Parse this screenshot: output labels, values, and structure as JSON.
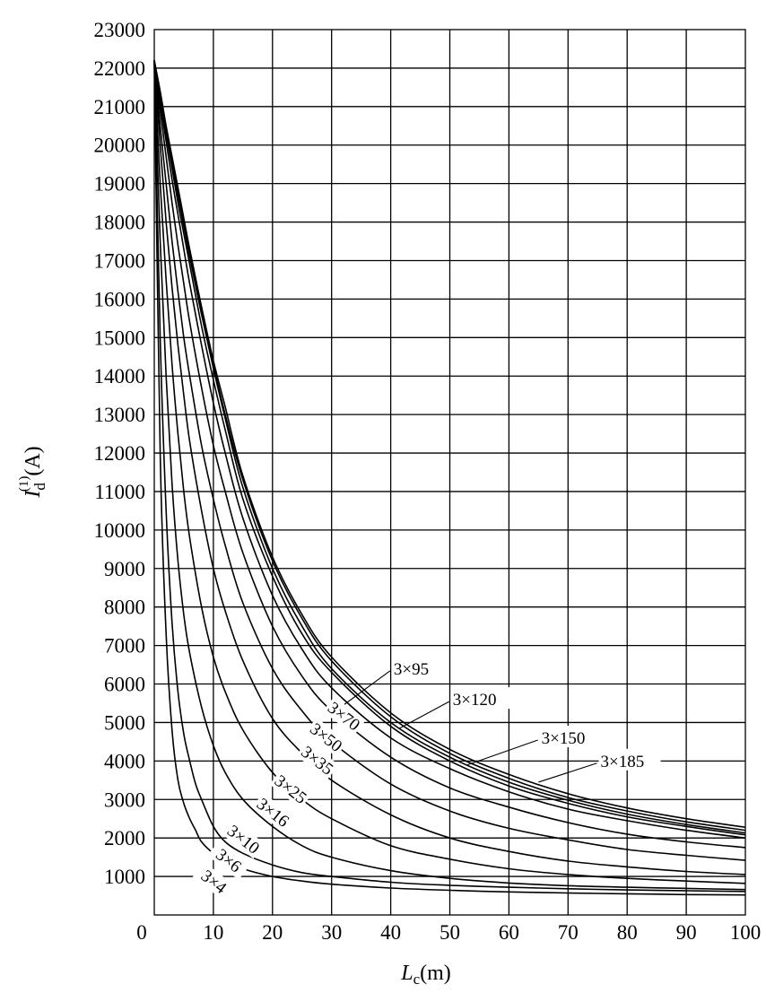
{
  "chart_data": {
    "type": "line",
    "xlabel_main": "L",
    "xlabel_sub": "c",
    "xlabel_unit": "(m)",
    "ylabel_main": "I",
    "ylabel_sub": "d",
    "ylabel_sup": "(1)",
    "ylabel_unit": "(A)",
    "xlim": [
      0,
      100
    ],
    "ylim": [
      0,
      23000
    ],
    "xticks": [
      0,
      10,
      20,
      30,
      40,
      50,
      60,
      70,
      80,
      90,
      100
    ],
    "yticks": [
      1000,
      2000,
      3000,
      4000,
      5000,
      6000,
      7000,
      8000,
      9000,
      10000,
      11000,
      12000,
      13000,
      14000,
      15000,
      16000,
      17000,
      18000,
      19000,
      20000,
      21000,
      22000,
      23000
    ],
    "grid": true,
    "series": [
      {
        "name": "3×4",
        "x": [
          0,
          1,
          2,
          3,
          4,
          5,
          6,
          7,
          8,
          10,
          12,
          15,
          20,
          25,
          30,
          40,
          50,
          60,
          70,
          80,
          90,
          100
        ],
        "y": [
          22200,
          12000,
          7300,
          4800,
          3500,
          2900,
          2500,
          2200,
          1900,
          1600,
          1400,
          1200,
          1000,
          880,
          800,
          700,
          640,
          600,
          570,
          550,
          530,
          520
        ]
      },
      {
        "name": "3×6",
        "x": [
          0,
          1,
          2,
          3,
          4,
          5,
          6,
          7,
          8,
          10,
          12,
          15,
          20,
          25,
          30,
          40,
          50,
          60,
          70,
          80,
          90,
          100
        ],
        "y": [
          22200,
          15000,
          10500,
          7600,
          5800,
          4700,
          4000,
          3400,
          3000,
          2300,
          1900,
          1600,
          1300,
          1100,
          1000,
          850,
          770,
          720,
          680,
          650,
          630,
          610
        ]
      },
      {
        "name": "3×10",
        "x": [
          0,
          1,
          2,
          3,
          4,
          5,
          6,
          8,
          10,
          12,
          15,
          20,
          25,
          30,
          40,
          50,
          60,
          70,
          80,
          90,
          100
        ],
        "y": [
          22200,
          17500,
          14000,
          11200,
          9200,
          7800,
          6800,
          5400,
          4400,
          3700,
          3000,
          2300,
          1800,
          1500,
          1150,
          950,
          830,
          760,
          720,
          690,
          660
        ]
      },
      {
        "name": "3×16",
        "x": [
          0,
          1,
          2,
          3,
          4,
          5,
          6,
          8,
          10,
          12,
          15,
          20,
          25,
          30,
          40,
          50,
          60,
          70,
          80,
          90,
          100
        ],
        "y": [
          22200,
          19000,
          16500,
          14300,
          12500,
          11000,
          9800,
          8000,
          6700,
          5800,
          4800,
          3700,
          3000,
          2500,
          1800,
          1450,
          1200,
          1050,
          950,
          880,
          820
        ]
      },
      {
        "name": "3×25",
        "x": [
          0,
          1,
          2,
          3,
          4,
          5,
          6,
          8,
          10,
          12,
          15,
          20,
          25,
          30,
          40,
          50,
          60,
          70,
          80,
          90,
          100
        ],
        "y": [
          22200,
          20000,
          18000,
          16300,
          14800,
          13500,
          12300,
          10500,
          9000,
          7900,
          6600,
          5100,
          4200,
          3500,
          2600,
          2000,
          1650,
          1400,
          1250,
          1130,
          1050
        ]
      },
      {
        "name": "3×35",
        "x": [
          0,
          1,
          2,
          3,
          4,
          5,
          6,
          8,
          10,
          12,
          15,
          20,
          25,
          30,
          40,
          50,
          60,
          70,
          80,
          90,
          100
        ],
        "y": [
          22200,
          20500,
          19000,
          17500,
          16200,
          15000,
          14000,
          12200,
          10800,
          9600,
          8100,
          6400,
          5300,
          4500,
          3400,
          2700,
          2250,
          1950,
          1700,
          1550,
          1420
        ]
      },
      {
        "name": "3×50",
        "x": [
          0,
          1,
          2,
          3,
          4,
          5,
          6,
          8,
          10,
          12,
          15,
          20,
          25,
          30,
          40,
          50,
          60,
          70,
          80,
          90,
          100
        ],
        "y": [
          22200,
          20900,
          19700,
          18500,
          17400,
          16400,
          15400,
          13700,
          12200,
          11000,
          9400,
          7500,
          6200,
          5300,
          4100,
          3300,
          2800,
          2400,
          2100,
          1900,
          1750
        ]
      },
      {
        "name": "3×70",
        "x": [
          0,
          1,
          2,
          3,
          4,
          5,
          6,
          8,
          10,
          12,
          15,
          20,
          25,
          30,
          40,
          50,
          60,
          70,
          80,
          90,
          100
        ],
        "y": [
          22200,
          21100,
          20100,
          19100,
          18200,
          17300,
          16400,
          14800,
          13300,
          12000,
          10300,
          8300,
          6900,
          5900,
          4600,
          3800,
          3200,
          2750,
          2450,
          2200,
          2000
        ]
      },
      {
        "name": "3×95",
        "x": [
          0,
          1,
          2,
          3,
          4,
          5,
          6,
          8,
          10,
          12,
          15,
          20,
          25,
          30,
          40,
          50,
          60,
          70,
          80,
          90,
          100
        ],
        "y": [
          22200,
          21200,
          20300,
          19400,
          18500,
          17700,
          16900,
          15300,
          13900,
          12600,
          10800,
          8800,
          7300,
          6300,
          4900,
          4000,
          3350,
          2900,
          2550,
          2300,
          2080
        ]
      },
      {
        "name": "3×120",
        "x": [
          0,
          1,
          2,
          3,
          4,
          5,
          6,
          8,
          10,
          12,
          15,
          20,
          25,
          30,
          40,
          50,
          60,
          70,
          80,
          90,
          100
        ],
        "y": [
          22200,
          21300,
          20400,
          19500,
          18700,
          17900,
          17100,
          15600,
          14200,
          12900,
          11100,
          9000,
          7500,
          6400,
          5000,
          4100,
          3450,
          2980,
          2620,
          2350,
          2130
        ]
      },
      {
        "name": "3×150",
        "x": [
          0,
          1,
          2,
          3,
          4,
          5,
          6,
          8,
          10,
          12,
          15,
          20,
          25,
          30,
          40,
          50,
          60,
          70,
          80,
          90,
          100
        ],
        "y": [
          22200,
          21300,
          20400,
          19600,
          18800,
          18000,
          17200,
          15700,
          14300,
          13000,
          11300,
          9200,
          7700,
          6600,
          5150,
          4200,
          3550,
          3050,
          2700,
          2420,
          2200
        ]
      },
      {
        "name": "3×185",
        "x": [
          0,
          1,
          2,
          3,
          4,
          5,
          6,
          8,
          10,
          12,
          15,
          20,
          25,
          30,
          40,
          50,
          60,
          70,
          80,
          90,
          100
        ],
        "y": [
          22200,
          21400,
          20500,
          19700,
          18900,
          18100,
          17300,
          15800,
          14400,
          13200,
          11400,
          9300,
          7800,
          6700,
          5250,
          4300,
          3650,
          3150,
          2780,
          2500,
          2280
        ]
      }
    ],
    "labels": [
      {
        "text": "3×95",
        "series": "3×95",
        "at_x": 40.5,
        "at_y": 6250,
        "on_x": 32,
        "on_y": 5450,
        "rotate": 0
      },
      {
        "text": "3×120",
        "series": "3×120",
        "at_x": 50.5,
        "at_y": 5450,
        "on_x": 41.5,
        "on_y": 4850,
        "rotate": 0
      },
      {
        "text": "3×150",
        "series": "3×150",
        "at_x": 65.5,
        "at_y": 4450,
        "on_x": 53,
        "on_y": 3900,
        "rotate": 0
      },
      {
        "text": "3×185",
        "series": "3×185",
        "at_x": 75.5,
        "at_y": 3850,
        "on_x": 65,
        "on_y": 3450,
        "rotate": 0
      },
      {
        "text": "3×70",
        "series": "3×70",
        "at_x": 31.5,
        "at_y": 5050,
        "rotate": 38
      },
      {
        "text": "3×50",
        "series": "3×50",
        "at_x": 28.5,
        "at_y": 4500,
        "rotate": 38
      },
      {
        "text": "3×35",
        "series": "3×35",
        "at_x": 27.0,
        "at_y": 3900,
        "rotate": 38
      },
      {
        "text": "3×25",
        "series": "3×25",
        "at_x": 22.5,
        "at_y": 3150,
        "rotate": 38
      },
      {
        "text": "3×16",
        "series": "3×16",
        "at_x": 19.5,
        "at_y": 2550,
        "rotate": 38
      },
      {
        "text": "3×10",
        "series": "3×10",
        "at_x": 14.5,
        "at_y": 1850,
        "rotate": 38
      },
      {
        "text": "3×6",
        "series": "3×6",
        "at_x": 12.0,
        "at_y": 1300,
        "rotate": 38
      },
      {
        "text": "3×4",
        "series": "3×4",
        "at_x": 9.5,
        "at_y": 750,
        "rotate": 38
      }
    ]
  }
}
